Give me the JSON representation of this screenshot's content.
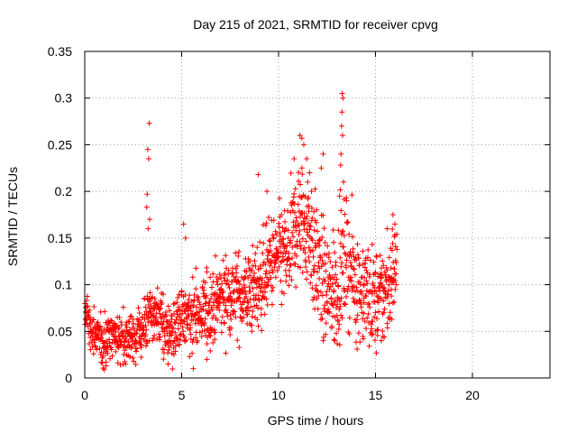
{
  "chart_data": {
    "type": "scatter",
    "title": "Day 215 of 2021, SRMTID for receiver cpvg",
    "xlabel": "GPS time / hours",
    "ylabel": "SRMTID / TECUs",
    "xlim": [
      0,
      24
    ],
    "ylim": [
      0,
      0.35
    ],
    "xticks": [
      0,
      5,
      10,
      15,
      20
    ],
    "xtick_labels": [
      "0",
      "5",
      "10",
      "15",
      "20"
    ],
    "yticks": [
      0,
      0.05,
      0.1,
      0.15,
      0.2,
      0.25,
      0.3,
      0.35
    ],
    "ytick_labels": [
      "0",
      "0.05",
      "0.1",
      "0.15",
      "0.2",
      "0.25",
      "0.3",
      "0.35"
    ],
    "grid": true,
    "marker": "+",
    "color": "#ff0000",
    "legend": "none",
    "series": [
      {
        "name": "SRMTID",
        "data_range_hours": [
          0,
          16.1
        ],
        "trend": [
          {
            "x": 0.0,
            "y": 0.07
          },
          {
            "x": 0.5,
            "y": 0.045
          },
          {
            "x": 1.0,
            "y": 0.04
          },
          {
            "x": 1.5,
            "y": 0.045
          },
          {
            "x": 2.0,
            "y": 0.045
          },
          {
            "x": 2.5,
            "y": 0.045
          },
          {
            "x": 3.0,
            "y": 0.05
          },
          {
            "x": 3.5,
            "y": 0.07
          },
          {
            "x": 4.0,
            "y": 0.06
          },
          {
            "x": 4.5,
            "y": 0.045
          },
          {
            "x": 5.0,
            "y": 0.065
          },
          {
            "x": 5.5,
            "y": 0.07
          },
          {
            "x": 6.0,
            "y": 0.065
          },
          {
            "x": 6.5,
            "y": 0.075
          },
          {
            "x": 7.0,
            "y": 0.085
          },
          {
            "x": 7.5,
            "y": 0.09
          },
          {
            "x": 8.0,
            "y": 0.09
          },
          {
            "x": 8.5,
            "y": 0.09
          },
          {
            "x": 9.0,
            "y": 0.1
          },
          {
            "x": 9.5,
            "y": 0.12
          },
          {
            "x": 10.0,
            "y": 0.13
          },
          {
            "x": 10.5,
            "y": 0.13
          },
          {
            "x": 11.0,
            "y": 0.17
          },
          {
            "x": 11.5,
            "y": 0.16
          },
          {
            "x": 12.0,
            "y": 0.12
          },
          {
            "x": 12.5,
            "y": 0.09
          },
          {
            "x": 13.0,
            "y": 0.1
          },
          {
            "x": 13.5,
            "y": 0.13
          },
          {
            "x": 14.0,
            "y": 0.1
          },
          {
            "x": 14.5,
            "y": 0.09
          },
          {
            "x": 15.0,
            "y": 0.08
          },
          {
            "x": 15.5,
            "y": 0.09
          },
          {
            "x": 16.0,
            "y": 0.12
          }
        ],
        "spread": [
          {
            "x": 0.0,
            "y": 0.02
          },
          {
            "x": 3.0,
            "y": 0.02
          },
          {
            "x": 5.0,
            "y": 0.03
          },
          {
            "x": 8.0,
            "y": 0.035
          },
          {
            "x": 10.0,
            "y": 0.04
          },
          {
            "x": 11.0,
            "y": 0.05
          },
          {
            "x": 13.0,
            "y": 0.05
          },
          {
            "x": 16.0,
            "y": 0.04
          }
        ],
        "peaks": [
          {
            "x": 3.33,
            "y": 0.273
          },
          {
            "x": 3.25,
            "y": 0.245
          },
          {
            "x": 3.3,
            "y": 0.235
          },
          {
            "x": 3.22,
            "y": 0.197
          },
          {
            "x": 3.2,
            "y": 0.183
          },
          {
            "x": 3.35,
            "y": 0.17
          },
          {
            "x": 3.27,
            "y": 0.16
          },
          {
            "x": 5.1,
            "y": 0.165
          },
          {
            "x": 5.2,
            "y": 0.15
          },
          {
            "x": 8.95,
            "y": 0.218
          },
          {
            "x": 9.4,
            "y": 0.2
          },
          {
            "x": 10.8,
            "y": 0.235
          },
          {
            "x": 11.1,
            "y": 0.26
          },
          {
            "x": 11.2,
            "y": 0.257
          },
          {
            "x": 11.3,
            "y": 0.25
          },
          {
            "x": 11.45,
            "y": 0.235
          },
          {
            "x": 11.6,
            "y": 0.22
          },
          {
            "x": 11.5,
            "y": 0.21
          },
          {
            "x": 11.7,
            "y": 0.2
          },
          {
            "x": 12.3,
            "y": 0.24
          },
          {
            "x": 12.2,
            "y": 0.225
          },
          {
            "x": 13.28,
            "y": 0.305
          },
          {
            "x": 13.32,
            "y": 0.3
          },
          {
            "x": 13.27,
            "y": 0.285
          },
          {
            "x": 13.25,
            "y": 0.27
          },
          {
            "x": 13.3,
            "y": 0.26
          },
          {
            "x": 13.22,
            "y": 0.24
          },
          {
            "x": 13.2,
            "y": 0.228
          },
          {
            "x": 13.35,
            "y": 0.21
          },
          {
            "x": 13.15,
            "y": 0.195
          },
          {
            "x": 15.6,
            "y": 0.16
          },
          {
            "x": 15.9,
            "y": 0.175
          },
          {
            "x": 16.0,
            "y": 0.165
          }
        ],
        "lows": [
          {
            "x": 5.6,
            "y": 0.01
          },
          {
            "x": 4.3,
            "y": 0.015
          },
          {
            "x": 1.1,
            "y": 0.017
          },
          {
            "x": 6.3,
            "y": 0.02
          },
          {
            "x": 12.9,
            "y": 0.04
          },
          {
            "x": 15.3,
            "y": 0.04
          }
        ]
      }
    ]
  }
}
